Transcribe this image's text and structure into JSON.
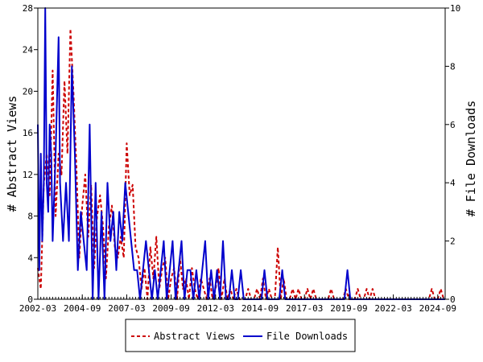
{
  "chart_data": {
    "type": "line",
    "xlabel": "",
    "x_ticks": [
      "2002-03",
      "2004-09",
      "2007-03",
      "2009-09",
      "2012-03",
      "2014-09",
      "2017-03",
      "2019-09",
      "2022-03",
      "2024-09"
    ],
    "x_range": [
      "2002-03",
      "2025-02"
    ],
    "left_axis": {
      "label": "# Abstract Views",
      "range": [
        0,
        28
      ],
      "ticks": [
        0,
        4,
        8,
        12,
        16,
        20,
        24,
        28
      ]
    },
    "right_axis": {
      "label": "# File Downloads",
      "range": [
        0,
        10
      ],
      "ticks": [
        0,
        2,
        4,
        6,
        8,
        10
      ]
    },
    "grid": false,
    "legend_position": "bottom-center",
    "series": [
      {
        "name": "Abstract Views",
        "axis": "left",
        "color": "#cc0000",
        "style": "dashed",
        "points": [
          [
            "2002-03",
            3
          ],
          [
            "2002-05",
            1
          ],
          [
            "2002-07",
            11
          ],
          [
            "2002-09",
            14
          ],
          [
            "2002-11",
            10
          ],
          [
            "2003-01",
            22
          ],
          [
            "2003-03",
            8
          ],
          [
            "2003-05",
            14
          ],
          [
            "2003-07",
            12
          ],
          [
            "2003-09",
            21
          ],
          [
            "2003-11",
            14
          ],
          [
            "2004-01",
            26
          ],
          [
            "2004-03",
            20
          ],
          [
            "2004-05",
            13
          ],
          [
            "2004-07",
            4
          ],
          [
            "2004-09",
            9
          ],
          [
            "2004-11",
            12
          ],
          [
            "2005-01",
            6
          ],
          [
            "2005-03",
            11
          ],
          [
            "2005-05",
            3
          ],
          [
            "2005-07",
            8
          ],
          [
            "2005-09",
            10
          ],
          [
            "2005-11",
            7
          ],
          [
            "2006-01",
            2
          ],
          [
            "2006-03",
            7
          ],
          [
            "2006-05",
            9
          ],
          [
            "2006-07",
            5
          ],
          [
            "2006-09",
            4
          ],
          [
            "2006-11",
            6
          ],
          [
            "2007-01",
            4
          ],
          [
            "2007-03",
            15
          ],
          [
            "2007-05",
            10
          ],
          [
            "2007-07",
            11
          ],
          [
            "2007-09",
            5
          ],
          [
            "2007-11",
            4
          ],
          [
            "2008-01",
            1
          ],
          [
            "2008-03",
            3
          ],
          [
            "2008-05",
            0
          ],
          [
            "2008-07",
            5
          ],
          [
            "2008-09",
            2
          ],
          [
            "2008-11",
            6
          ],
          [
            "2009-01",
            1
          ],
          [
            "2009-03",
            3
          ],
          [
            "2009-05",
            4
          ],
          [
            "2009-07",
            0
          ],
          [
            "2009-09",
            2
          ],
          [
            "2009-11",
            3
          ],
          [
            "2010-01",
            0
          ],
          [
            "2010-03",
            4
          ],
          [
            "2010-05",
            1
          ],
          [
            "2010-07",
            2
          ],
          [
            "2010-09",
            0
          ],
          [
            "2010-11",
            3
          ],
          [
            "2011-01",
            1
          ],
          [
            "2011-03",
            0
          ],
          [
            "2011-05",
            2
          ],
          [
            "2011-07",
            1
          ],
          [
            "2011-09",
            0
          ],
          [
            "2011-11",
            2
          ],
          [
            "2012-01",
            0
          ],
          [
            "2012-03",
            1
          ],
          [
            "2012-05",
            3
          ],
          [
            "2012-07",
            0
          ],
          [
            "2012-09",
            2
          ],
          [
            "2012-11",
            0
          ],
          [
            "2013-01",
            1
          ],
          [
            "2013-03",
            0
          ],
          [
            "2013-05",
            1
          ],
          [
            "2013-07",
            0
          ],
          [
            "2013-09",
            0
          ],
          [
            "2013-11",
            0
          ],
          [
            "2014-01",
            1
          ],
          [
            "2014-03",
            0
          ],
          [
            "2014-05",
            0
          ],
          [
            "2014-07",
            1
          ],
          [
            "2014-09",
            0
          ],
          [
            "2014-11",
            2
          ],
          [
            "2015-01",
            0
          ],
          [
            "2015-03",
            1
          ],
          [
            "2015-05",
            0
          ],
          [
            "2015-07",
            0
          ],
          [
            "2015-09",
            5
          ],
          [
            "2015-11",
            0
          ],
          [
            "2016-01",
            2
          ],
          [
            "2016-03",
            0
          ],
          [
            "2016-05",
            0
          ],
          [
            "2016-07",
            1
          ],
          [
            "2016-09",
            0
          ],
          [
            "2016-11",
            1
          ],
          [
            "2017-01",
            0
          ],
          [
            "2017-03",
            0
          ],
          [
            "2017-05",
            1
          ],
          [
            "2017-07",
            0
          ],
          [
            "2017-09",
            1
          ],
          [
            "2017-11",
            0
          ],
          [
            "2018-01",
            0
          ],
          [
            "2018-03",
            0
          ],
          [
            "2018-05",
            0
          ],
          [
            "2018-07",
            0
          ],
          [
            "2018-09",
            1
          ],
          [
            "2018-11",
            0
          ],
          [
            "2019-01",
            0
          ],
          [
            "2019-03",
            0
          ],
          [
            "2019-05",
            0
          ],
          [
            "2019-07",
            1
          ],
          [
            "2019-09",
            0
          ],
          [
            "2019-11",
            0
          ],
          [
            "2020-01",
            0
          ],
          [
            "2020-03",
            1
          ],
          [
            "2020-05",
            0
          ],
          [
            "2020-07",
            0
          ],
          [
            "2020-09",
            1
          ],
          [
            "2020-11",
            0
          ],
          [
            "2021-01",
            1
          ],
          [
            "2021-03",
            0
          ],
          [
            "2021-05",
            0
          ],
          [
            "2021-07",
            0
          ],
          [
            "2021-09",
            0
          ],
          [
            "2021-11",
            0
          ],
          [
            "2022-01",
            0
          ],
          [
            "2022-03",
            0
          ],
          [
            "2022-05",
            0
          ],
          [
            "2022-07",
            0
          ],
          [
            "2022-09",
            0
          ],
          [
            "2022-11",
            0
          ],
          [
            "2023-01",
            0
          ],
          [
            "2023-03",
            0
          ],
          [
            "2023-05",
            0
          ],
          [
            "2023-07",
            0
          ],
          [
            "2023-09",
            0
          ],
          [
            "2023-11",
            0
          ],
          [
            "2024-01",
            0
          ],
          [
            "2024-03",
            0
          ],
          [
            "2024-05",
            1
          ],
          [
            "2024-07",
            0
          ],
          [
            "2024-09",
            0
          ],
          [
            "2024-11",
            1
          ],
          [
            "2025-01",
            0
          ]
        ]
      },
      {
        "name": "File Downloads",
        "axis": "right",
        "color": "#0000cc",
        "style": "solid",
        "points": [
          [
            "2002-03",
            6
          ],
          [
            "2002-04",
            1
          ],
          [
            "2002-05",
            5
          ],
          [
            "2002-06",
            2
          ],
          [
            "2002-07",
            4
          ],
          [
            "2002-08",
            10
          ],
          [
            "2002-09",
            4
          ],
          [
            "2002-10",
            3
          ],
          [
            "2002-11",
            6
          ],
          [
            "2002-12",
            5
          ],
          [
            "2003-01",
            2
          ],
          [
            "2003-03",
            5
          ],
          [
            "2003-05",
            9
          ],
          [
            "2003-06",
            4
          ],
          [
            "2003-08",
            2
          ],
          [
            "2003-10",
            4
          ],
          [
            "2003-12",
            2
          ],
          [
            "2004-02",
            8
          ],
          [
            "2004-04",
            5
          ],
          [
            "2004-06",
            1
          ],
          [
            "2004-08",
            3
          ],
          [
            "2004-10",
            2
          ],
          [
            "2004-12",
            1
          ],
          [
            "2005-02",
            6
          ],
          [
            "2005-04",
            0
          ],
          [
            "2005-06",
            4
          ],
          [
            "2005-08",
            0
          ],
          [
            "2005-10",
            3
          ],
          [
            "2005-12",
            0
          ],
          [
            "2006-02",
            4
          ],
          [
            "2006-04",
            2
          ],
          [
            "2006-06",
            3
          ],
          [
            "2006-08",
            1
          ],
          [
            "2006-10",
            3
          ],
          [
            "2006-12",
            2
          ],
          [
            "2007-02",
            4
          ],
          [
            "2007-04",
            3
          ],
          [
            "2007-06",
            2
          ],
          [
            "2007-08",
            1
          ],
          [
            "2007-10",
            1
          ],
          [
            "2007-12",
            0
          ],
          [
            "2008-02",
            1
          ],
          [
            "2008-04",
            2
          ],
          [
            "2008-06",
            1
          ],
          [
            "2008-08",
            0
          ],
          [
            "2008-10",
            1
          ],
          [
            "2008-12",
            0
          ],
          [
            "2009-02",
            1
          ],
          [
            "2009-04",
            2
          ],
          [
            "2009-06",
            0
          ],
          [
            "2009-08",
            1
          ],
          [
            "2009-10",
            2
          ],
          [
            "2009-12",
            0
          ],
          [
            "2010-02",
            1
          ],
          [
            "2010-04",
            2
          ],
          [
            "2010-06",
            0
          ],
          [
            "2010-08",
            1
          ],
          [
            "2010-10",
            1
          ],
          [
            "2010-12",
            0
          ],
          [
            "2011-02",
            1
          ],
          [
            "2011-04",
            0
          ],
          [
            "2011-06",
            1
          ],
          [
            "2011-08",
            2
          ],
          [
            "2011-10",
            0
          ],
          [
            "2011-12",
            1
          ],
          [
            "2012-02",
            0
          ],
          [
            "2012-04",
            1
          ],
          [
            "2012-06",
            0
          ],
          [
            "2012-08",
            2
          ],
          [
            "2012-10",
            0
          ],
          [
            "2012-12",
            0
          ],
          [
            "2013-02",
            1
          ],
          [
            "2013-04",
            0
          ],
          [
            "2013-06",
            0
          ],
          [
            "2013-08",
            1
          ],
          [
            "2013-10",
            0
          ],
          [
            "2013-12",
            0
          ],
          [
            "2014-02",
            0
          ],
          [
            "2014-04",
            0
          ],
          [
            "2014-06",
            0
          ],
          [
            "2014-08",
            0
          ],
          [
            "2014-10",
            0
          ],
          [
            "2014-12",
            1
          ],
          [
            "2015-02",
            0
          ],
          [
            "2015-04",
            0
          ],
          [
            "2015-06",
            0
          ],
          [
            "2015-08",
            0
          ],
          [
            "2015-10",
            0
          ],
          [
            "2015-12",
            1
          ],
          [
            "2016-02",
            0
          ],
          [
            "2016-04",
            0
          ],
          [
            "2016-06",
            0
          ],
          [
            "2016-08",
            0
          ],
          [
            "2016-10",
            0
          ],
          [
            "2016-12",
            0
          ],
          [
            "2017-02",
            0
          ],
          [
            "2017-04",
            0
          ],
          [
            "2017-06",
            0
          ],
          [
            "2017-08",
            0
          ],
          [
            "2017-10",
            0
          ],
          [
            "2017-12",
            0
          ],
          [
            "2018-02",
            0
          ],
          [
            "2018-04",
            0
          ],
          [
            "2018-06",
            0
          ],
          [
            "2018-08",
            0
          ],
          [
            "2018-10",
            0
          ],
          [
            "2018-12",
            0
          ],
          [
            "2019-02",
            0
          ],
          [
            "2019-04",
            0
          ],
          [
            "2019-06",
            0
          ],
          [
            "2019-08",
            1
          ],
          [
            "2019-10",
            0
          ],
          [
            "2019-12",
            0
          ],
          [
            "2020-02",
            0
          ],
          [
            "2020-04",
            0
          ],
          [
            "2020-06",
            0
          ],
          [
            "2020-08",
            0
          ],
          [
            "2020-10",
            0
          ],
          [
            "2020-12",
            0
          ],
          [
            "2021-02",
            0
          ],
          [
            "2021-04",
            0
          ],
          [
            "2021-06",
            0
          ],
          [
            "2021-08",
            0
          ],
          [
            "2021-10",
            0
          ],
          [
            "2021-12",
            0
          ],
          [
            "2022-02",
            0
          ],
          [
            "2022-04",
            0
          ],
          [
            "2022-06",
            0
          ],
          [
            "2022-08",
            0
          ],
          [
            "2022-10",
            0
          ],
          [
            "2022-12",
            0
          ],
          [
            "2023-02",
            0
          ],
          [
            "2023-04",
            0
          ],
          [
            "2023-06",
            0
          ],
          [
            "2023-08",
            0
          ],
          [
            "2023-10",
            0
          ],
          [
            "2023-12",
            0
          ],
          [
            "2024-02",
            0
          ],
          [
            "2024-04",
            0
          ],
          [
            "2024-06",
            0
          ],
          [
            "2024-08",
            0
          ],
          [
            "2024-10",
            0
          ],
          [
            "2024-12",
            0
          ],
          [
            "2025-02",
            0
          ]
        ]
      }
    ]
  }
}
